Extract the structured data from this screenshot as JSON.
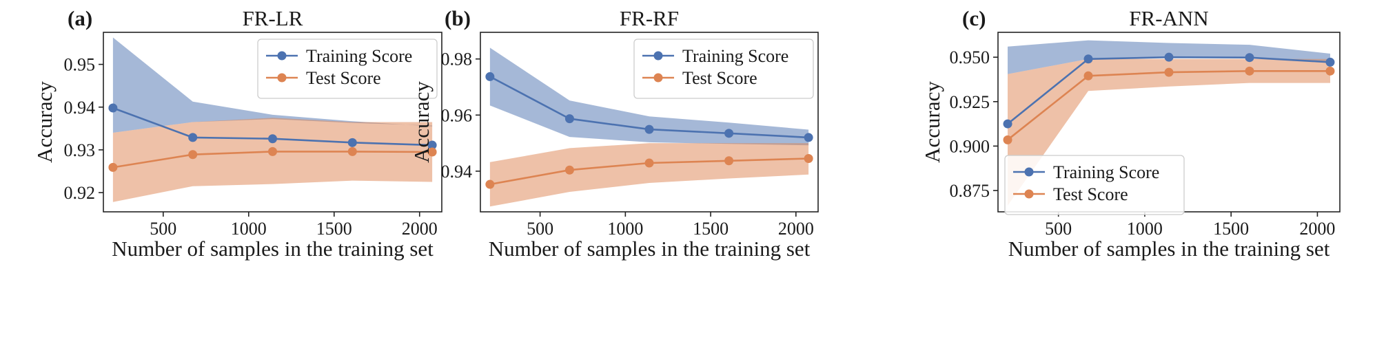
{
  "figure": {
    "colors": {
      "train": "#4c72b0",
      "test": "#dd8452"
    },
    "x_axis_label": "Number of samples in the training set",
    "y_axis_label": "Accuracy"
  },
  "chart_data": [
    {
      "type": "line",
      "panel": "(a)",
      "title": "FR-LR",
      "xlabel": "Number of samples in the training set",
      "ylabel": "Accuracy",
      "x": [
        206,
        673,
        1140,
        1607,
        2074
      ],
      "xlim": [
        150,
        2130
      ],
      "ylim": [
        0.9155,
        0.9575
      ],
      "xticks": [
        500,
        1000,
        1500,
        2000
      ],
      "yticks": [
        0.92,
        0.93,
        0.94,
        0.95
      ],
      "ytick_labels": [
        "0.92",
        "0.93",
        "0.94",
        "0.95"
      ],
      "legend_position": "top-right",
      "series": [
        {
          "name": "Training Score",
          "color": "#4c72b0",
          "values": [
            0.9398,
            0.9329,
            0.9326,
            0.9317,
            0.9311
          ],
          "band_upper": [
            0.9563,
            0.9413,
            0.9382,
            0.9367,
            0.9355
          ],
          "band_lower": [
            0.934,
            0.9365,
            0.9372,
            0.9363,
            0.9357
          ]
        },
        {
          "name": "Test Score",
          "color": "#dd8452",
          "values": [
            0.9259,
            0.9289,
            0.9296,
            0.9296,
            0.9295
          ],
          "band_upper": [
            0.934,
            0.9365,
            0.9375,
            0.9365,
            0.9365
          ],
          "band_lower": [
            0.9178,
            0.9215,
            0.922,
            0.9228,
            0.9225
          ]
        }
      ]
    },
    {
      "type": "line",
      "panel": "(b)",
      "title": "FR-RF",
      "xlabel": "Number of samples in the training set",
      "ylabel": "Accuracy",
      "x": [
        206,
        673,
        1140,
        1607,
        2074
      ],
      "xlim": [
        150,
        2130
      ],
      "ylim": [
        0.9255,
        0.9895
      ],
      "xticks": [
        500,
        1000,
        1500,
        2000
      ],
      "yticks": [
        0.94,
        0.96,
        0.98
      ],
      "ytick_labels": [
        "0.94",
        "0.96",
        "0.98"
      ],
      "legend_position": "top-right",
      "series": [
        {
          "name": "Training Score",
          "color": "#4c72b0",
          "values": [
            0.9737,
            0.9587,
            0.9549,
            0.9535,
            0.952
          ],
          "band_upper": [
            0.984,
            0.9652,
            0.9595,
            0.9573,
            0.9548
          ],
          "band_lower": [
            0.9634,
            0.9522,
            0.9503,
            0.9497,
            0.9492
          ]
        },
        {
          "name": "Test Score",
          "color": "#dd8452",
          "values": [
            0.9353,
            0.9404,
            0.9429,
            0.9437,
            0.9445
          ],
          "band_upper": [
            0.9432,
            0.9482,
            0.95,
            0.95,
            0.95
          ],
          "band_lower": [
            0.9274,
            0.9326,
            0.9358,
            0.9374,
            0.9388
          ]
        }
      ]
    },
    {
      "type": "line",
      "panel": "(c)",
      "title": "FR-ANN",
      "xlabel": "Number of samples in the training set",
      "ylabel": "Accuracy",
      "x": [
        206,
        673,
        1140,
        1607,
        2074
      ],
      "xlim": [
        150,
        2130
      ],
      "ylim": [
        0.863,
        0.964
      ],
      "xticks": [
        500,
        1000,
        1500,
        2000
      ],
      "yticks": [
        0.875,
        0.9,
        0.925,
        0.95
      ],
      "ytick_labels": [
        "0.875",
        "0.900",
        "0.925",
        "0.950"
      ],
      "legend_position": "bottom-left",
      "series": [
        {
          "name": "Training Score",
          "color": "#4c72b0",
          "values": [
            0.9125,
            0.949,
            0.95,
            0.9498,
            0.9472
          ],
          "band_upper": [
            0.956,
            0.9595,
            0.958,
            0.957,
            0.952
          ],
          "band_lower": [
            0.9405,
            0.949,
            0.95,
            0.9498,
            0.9472
          ]
        },
        {
          "name": "Test Score",
          "color": "#dd8452",
          "values": [
            0.9035,
            0.9395,
            0.9415,
            0.9422,
            0.9422
          ],
          "band_upper": [
            0.9405,
            0.949,
            0.949,
            0.949,
            0.949
          ],
          "band_lower": [
            0.8665,
            0.931,
            0.9335,
            0.9355,
            0.9355
          ]
        }
      ]
    }
  ]
}
